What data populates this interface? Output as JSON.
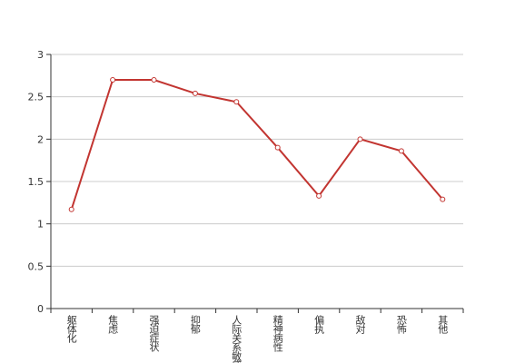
{
  "chart_data": {
    "type": "line",
    "categories": [
      "躯体化",
      "焦虑",
      "强迫症状",
      "抑郁",
      "人际关系敏感",
      "精神病性",
      "偏执",
      "敌对",
      "恐怖",
      "其他"
    ],
    "values": [
      1.17,
      2.7,
      2.7,
      2.54,
      2.44,
      1.9,
      1.33,
      2.0,
      1.86,
      1.29
    ],
    "color": "#c23531",
    "ylim": [
      0,
      3
    ],
    "yticks": [
      0,
      0.5,
      1,
      1.5,
      2,
      2.5,
      3
    ],
    "grid": true
  }
}
